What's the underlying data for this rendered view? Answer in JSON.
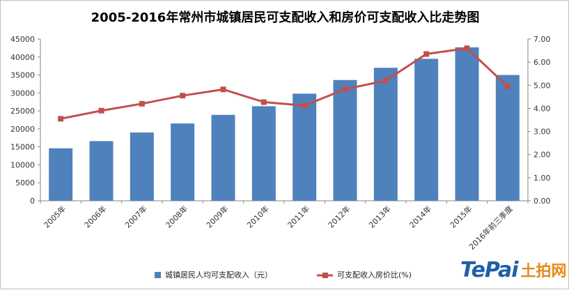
{
  "chart_data": {
    "type": "bar",
    "title": "2005-2016年常州市城镇居民可支配收入和房价可支配收入比走势图",
    "categories": [
      "2005年",
      "2006年",
      "2007年",
      "2008年",
      "2009年",
      "2010年",
      "2011年",
      "2012年",
      "2013年",
      "2014年",
      "2015年",
      "2016年前三季度"
    ],
    "series": [
      {
        "name": "城镇居民人均可支配收入（元）",
        "type": "bar",
        "axis": "left",
        "color": "#4f81bd",
        "values": [
          14600,
          16600,
          19000,
          21500,
          23900,
          26300,
          29800,
          33600,
          37000,
          39500,
          42700,
          35000
        ]
      },
      {
        "name": "可支配收入房价比(%)",
        "type": "line",
        "axis": "right",
        "color": "#c0504d",
        "values": [
          3.55,
          3.9,
          4.2,
          4.55,
          4.82,
          4.27,
          4.12,
          4.83,
          5.2,
          6.35,
          6.6,
          4.95
        ]
      }
    ],
    "y_left": {
      "min": 0,
      "max": 45000,
      "step": 5000
    },
    "y_right": {
      "min": 0,
      "max": 7,
      "step": 1,
      "decimals": 2
    },
    "legend": "bottom",
    "grid": false
  },
  "watermark": {
    "latin": "TePai",
    "cjk": "土拍网"
  }
}
